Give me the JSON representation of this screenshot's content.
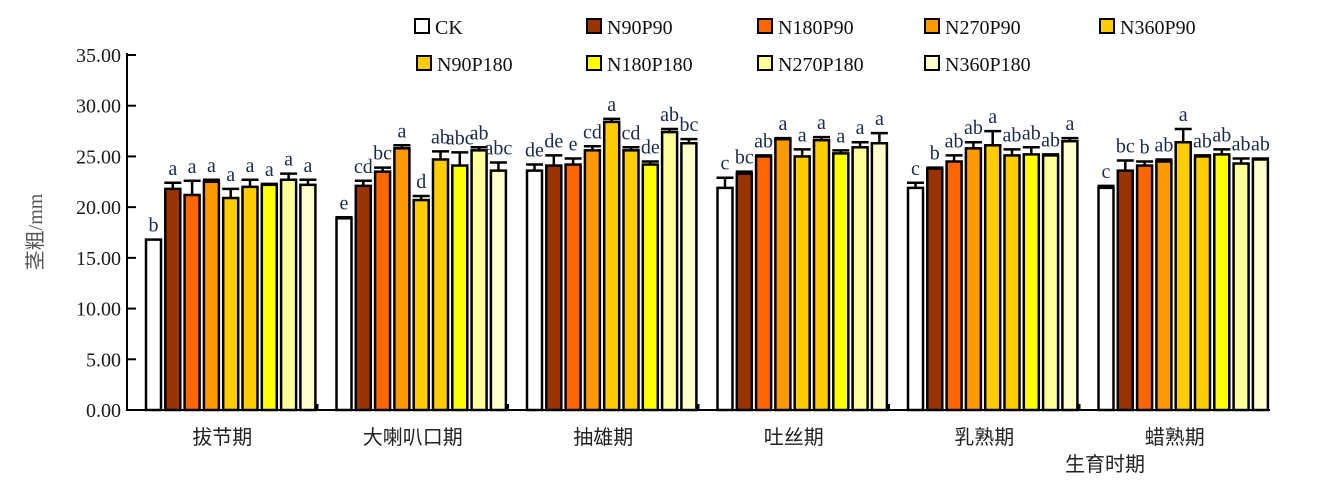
{
  "chart_data": {
    "type": "bar",
    "title": "",
    "xlabel": "生育时期",
    "ylabel": "茎粗/mm",
    "ylim": [
      0,
      35
    ],
    "yticks": [
      "0.00",
      "5.00",
      "10.00",
      "15.00",
      "20.00",
      "25.00",
      "30.00",
      "35.00"
    ],
    "ytick_values": [
      0,
      5,
      10,
      15,
      20,
      25,
      30,
      35
    ],
    "grid": false,
    "legend_position": "top",
    "categories": [
      "拔节期",
      "大喇叭口期",
      "抽雄期",
      "吐丝期",
      "乳熟期",
      "蜡熟期"
    ],
    "series": [
      {
        "name": "CK",
        "color": "#FFFFFF",
        "values": [
          16.8,
          18.9,
          23.6,
          21.9,
          21.9,
          21.9
        ],
        "errors": [
          0,
          0.1,
          0.6,
          1.0,
          0.5,
          0.2
        ],
        "labels": [
          "b",
          "e",
          "de",
          "c",
          "c",
          "c"
        ]
      },
      {
        "name": "N90P90",
        "color": "#993300",
        "values": [
          21.8,
          22.1,
          24.1,
          23.3,
          23.8,
          23.6
        ],
        "errors": [
          0.6,
          0.5,
          1.0,
          0.2,
          0.1,
          1.0
        ],
        "labels": [
          "a",
          "cd",
          "de",
          "bc",
          "b",
          "bc"
        ]
      },
      {
        "name": "N180P90",
        "color": "#FF6600",
        "values": [
          21.2,
          23.5,
          24.2,
          25.0,
          24.5,
          24.1
        ],
        "errors": [
          1.4,
          0.4,
          0.6,
          0.1,
          0.6,
          0.4
        ],
        "labels": [
          "a",
          "bc",
          "e",
          "ab",
          "ab",
          "b"
        ]
      },
      {
        "name": "N270P90",
        "color": "#FF9900",
        "values": [
          22.5,
          25.8,
          25.6,
          26.7,
          25.8,
          24.5
        ],
        "errors": [
          0.2,
          0.3,
          0.4,
          0.1,
          0.6,
          0.2
        ],
        "labels": [
          "a",
          "a",
          "cd",
          "a",
          "ab",
          "ab"
        ]
      },
      {
        "name": "N360P90",
        "color": "#FFCC00",
        "values": [
          20.9,
          20.7,
          28.4,
          25.0,
          26.1,
          26.4
        ],
        "errors": [
          0.9,
          0.4,
          0.3,
          0.7,
          1.4,
          1.3
        ],
        "labels": [
          "a",
          "d",
          "a",
          "a",
          "a",
          "a"
        ]
      },
      {
        "name": "N90P180",
        "color": "#FFCC00",
        "values": [
          22.0,
          24.7,
          25.6,
          26.6,
          25.1,
          25.0
        ],
        "errors": [
          0.7,
          0.8,
          0.3,
          0.3,
          0.6,
          0.1
        ],
        "labels": [
          "a",
          "ab",
          "cd",
          "a",
          "ab",
          "ab"
        ]
      },
      {
        "name": "N180P180",
        "color": "#FFFF00",
        "values": [
          22.2,
          24.1,
          24.2,
          25.3,
          25.2,
          25.2
        ],
        "errors": [
          0.1,
          1.3,
          0.3,
          0.3,
          0.7,
          0.5
        ],
        "labels": [
          "a",
          "abc",
          "de",
          "a",
          "ab",
          "ab"
        ]
      },
      {
        "name": "N270P180",
        "color": "#FFFF99",
        "values": [
          22.7,
          25.6,
          27.4,
          25.9,
          25.1,
          24.3
        ],
        "errors": [
          0.6,
          0.3,
          0.3,
          0.5,
          0.1,
          0.5
        ],
        "labels": [
          "a",
          "ab",
          "ab",
          "a",
          "ab",
          "ab"
        ]
      },
      {
        "name": "N360P180",
        "color": "#FFFFCC",
        "values": [
          22.2,
          23.6,
          26.3,
          26.3,
          26.5,
          24.7
        ],
        "errors": [
          0.5,
          0.8,
          0.4,
          1.0,
          0.3,
          0.1
        ],
        "labels": [
          "a",
          "abc",
          "bc",
          "a",
          "a",
          "ab"
        ]
      }
    ]
  }
}
